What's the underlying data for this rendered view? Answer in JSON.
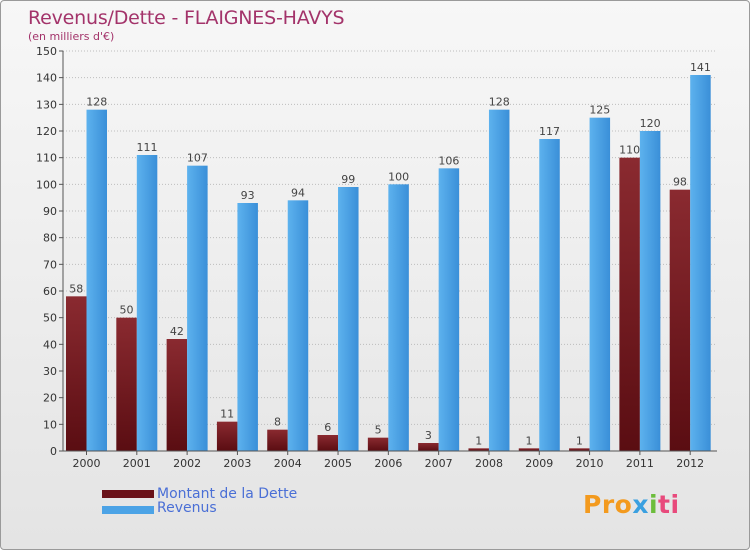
{
  "title": "Revenus/Dette - FLAIGNES-HAVYS",
  "subtitle": "(en milliers d'€)",
  "colors": {
    "dette": "#7a1d24",
    "dette_dark": "#5a0d12",
    "revenus": "#4ca3e6",
    "revenus_dark": "#2e7fc9",
    "axis_text": "#333333",
    "label_text": "#444444",
    "title": "#a3336a",
    "legend_text": "#4a6fd6"
  },
  "legend": {
    "dette": "Montant de la Dette",
    "revenus": "Revenus"
  },
  "logo": {
    "p1": "Pro",
    "p2": "x",
    "p3": "i",
    "p4": "ti"
  },
  "chart_data": {
    "type": "bar",
    "title": "Revenus/Dette - FLAIGNES-HAVYS",
    "ylabel": "(en milliers d'€)",
    "xlabel": "",
    "categories": [
      "2000",
      "2001",
      "2002",
      "2003",
      "2004",
      "2005",
      "2006",
      "2007",
      "2008",
      "2009",
      "2010",
      "2011",
      "2012"
    ],
    "series": [
      {
        "name": "Montant de la Dette",
        "values": [
          58,
          50,
          42,
          11,
          8,
          6,
          5,
          3,
          1,
          1,
          1,
          110,
          98
        ]
      },
      {
        "name": "Revenus",
        "values": [
          128,
          111,
          107,
          93,
          94,
          99,
          100,
          106,
          128,
          117,
          125,
          120,
          141
        ]
      }
    ],
    "ylim": [
      0,
      150
    ],
    "yticks": [
      0,
      10,
      20,
      30,
      40,
      50,
      60,
      70,
      80,
      90,
      100,
      110,
      120,
      130,
      140,
      150
    ],
    "grid": true,
    "legend_position": "bottom-left"
  }
}
